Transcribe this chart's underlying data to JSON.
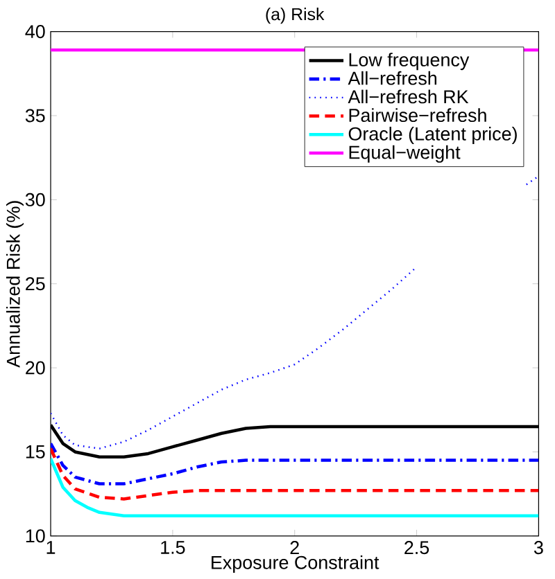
{
  "chart_data": {
    "type": "line",
    "title": "(a) Risk",
    "xlabel": "Exposure Constraint",
    "ylabel": "Annualized Risk (%)",
    "xlim": [
      1,
      3
    ],
    "ylim": [
      10,
      40
    ],
    "xticks": [
      1,
      1.5,
      2,
      2.5,
      3
    ],
    "yticks": [
      10,
      15,
      20,
      25,
      30,
      35,
      40
    ],
    "legend": "top right",
    "series": [
      {
        "name": "Low frequency",
        "color": "#000000",
        "line_style": "solid",
        "x": [
          1,
          1.05,
          1.1,
          1.2,
          1.3,
          1.4,
          1.5,
          1.6,
          1.7,
          1.8,
          1.9,
          2,
          2.5,
          3
        ],
        "values": [
          16.6,
          15.5,
          15.0,
          14.7,
          14.7,
          14.9,
          15.3,
          15.7,
          16.1,
          16.4,
          16.5,
          16.5,
          16.5,
          16.5
        ]
      },
      {
        "name": "All−refresh",
        "color": "#0000ff",
        "line_style": "dashdot",
        "x": [
          1,
          1.05,
          1.1,
          1.2,
          1.3,
          1.4,
          1.5,
          1.6,
          1.7,
          1.8,
          2,
          2.5,
          3
        ],
        "values": [
          15.5,
          14.2,
          13.5,
          13.1,
          13.1,
          13.4,
          13.7,
          14.1,
          14.4,
          14.5,
          14.5,
          14.5,
          14.5
        ]
      },
      {
        "name": "All−refresh RK",
        "color": "#0000ff",
        "line_style": "dotted",
        "x": [
          1,
          1.05,
          1.1,
          1.2,
          1.3,
          1.4,
          1.5,
          1.6,
          1.7,
          1.8,
          1.9,
          2,
          2.1,
          2.2,
          2.3,
          2.4,
          2.5,
          2.6,
          2.7,
          2.8,
          2.9,
          2.95,
          3
        ],
        "values": [
          17.3,
          16.0,
          15.4,
          15.2,
          15.6,
          16.3,
          17.1,
          17.9,
          18.7,
          19.3,
          19.7,
          20.2,
          21.2,
          22.3,
          23.5,
          24.7,
          26.0,
          null,
          null,
          null,
          null,
          30.9,
          31.4
        ]
      },
      {
        "name": "Pairwise−refresh",
        "color": "#ff0000",
        "line_style": "dashed",
        "x": [
          1,
          1.05,
          1.1,
          1.2,
          1.3,
          1.4,
          1.5,
          1.6,
          2,
          2.5,
          3
        ],
        "values": [
          15.2,
          13.6,
          12.8,
          12.3,
          12.2,
          12.4,
          12.6,
          12.7,
          12.7,
          12.7,
          12.7
        ]
      },
      {
        "name": "Oracle (Latent price)",
        "color": "#00ffff",
        "line_style": "solid",
        "x": [
          1,
          1.05,
          1.1,
          1.15,
          1.2,
          1.3,
          1.35,
          1.5,
          2,
          2.5,
          3
        ],
        "values": [
          14.6,
          12.9,
          12.1,
          11.7,
          11.4,
          11.2,
          11.2,
          11.2,
          11.2,
          11.2,
          11.2
        ]
      },
      {
        "name": "Equal−weight",
        "color": "#ff00ff",
        "line_style": "solid",
        "x": [
          1,
          2,
          3
        ],
        "values": [
          38.9,
          38.9,
          38.9
        ]
      }
    ]
  }
}
